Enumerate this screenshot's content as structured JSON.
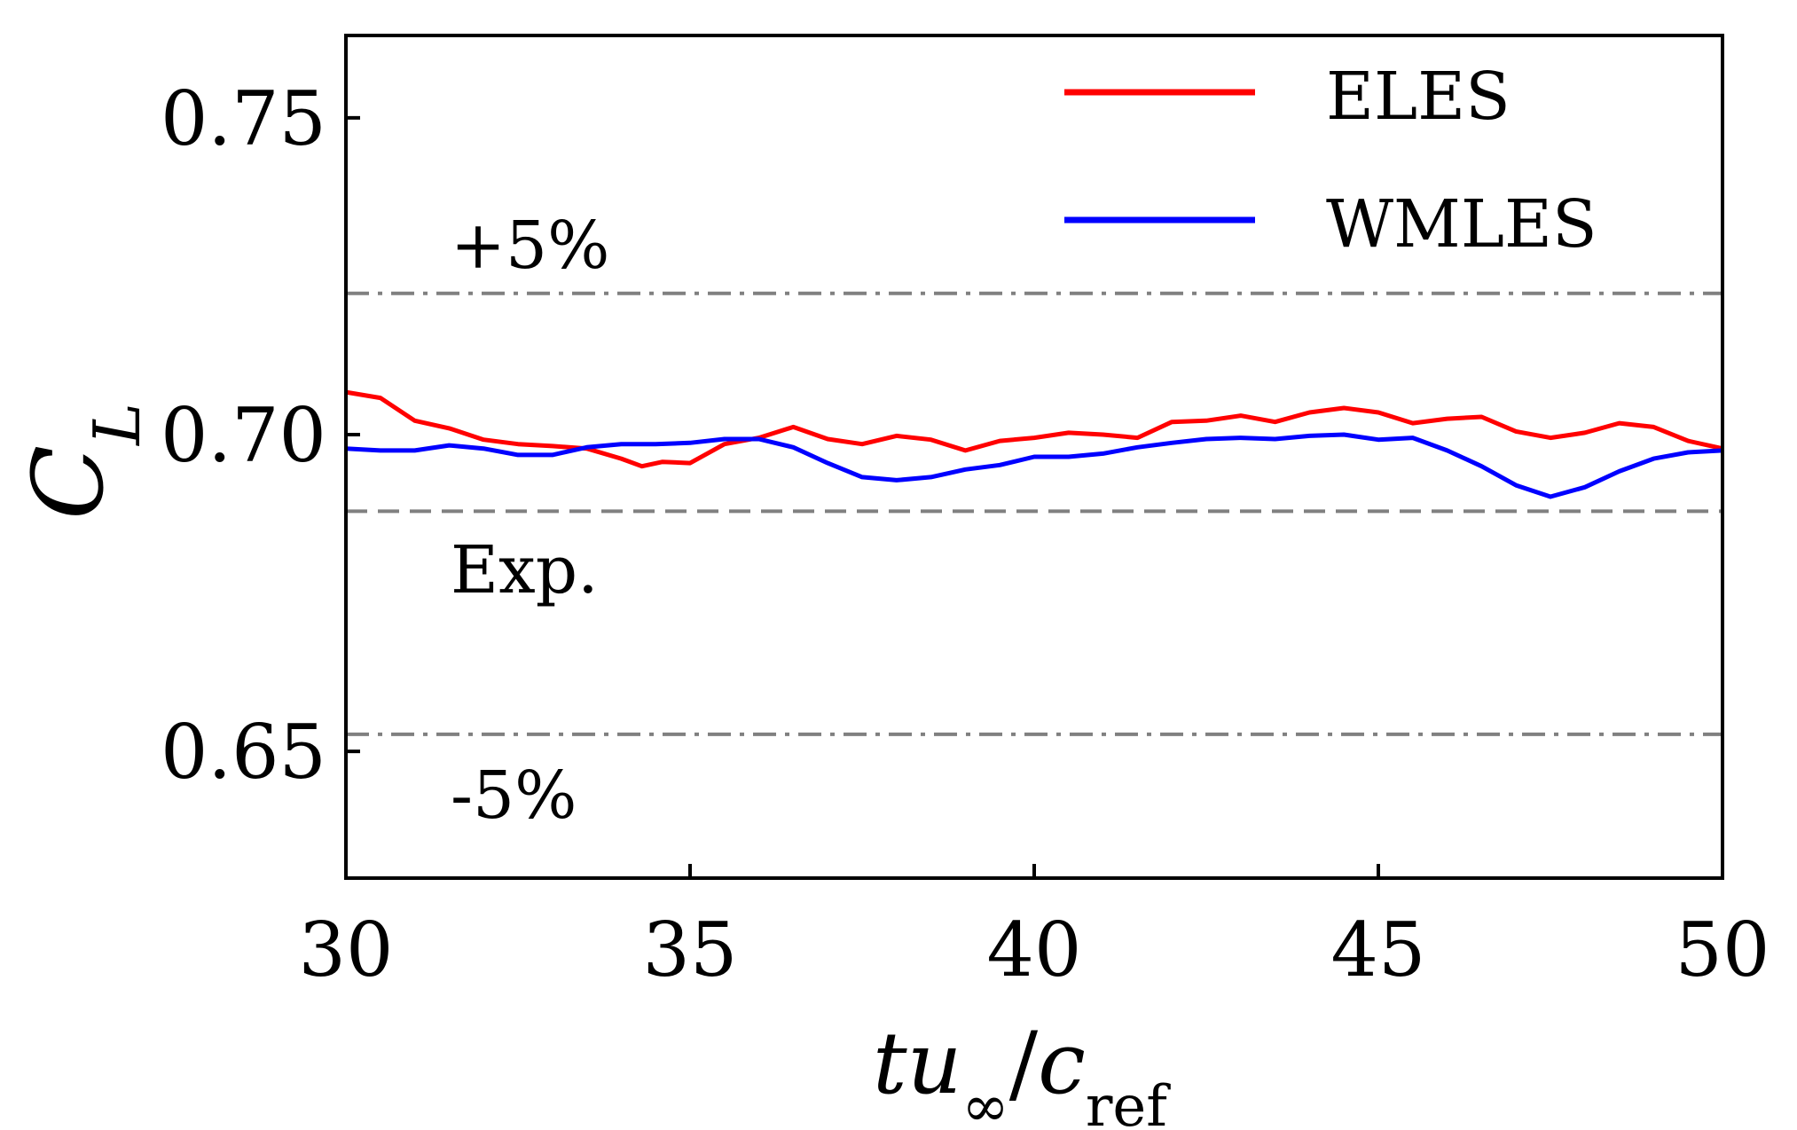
{
  "chart_data": {
    "type": "line",
    "xlabel": "tu∞/cref",
    "ylabel": "CL",
    "xlim": [
      30,
      50
    ],
    "ylim": [
      0.63,
      0.763
    ],
    "x_ticks": [
      "30",
      "35",
      "40",
      "45",
      "50"
    ],
    "y_ticks": [
      "0.65",
      "0.70",
      "0.75"
    ],
    "legend": {
      "position": "top-right",
      "entries": [
        "ELES",
        "WMLES"
      ]
    },
    "grid": false,
    "reference_lines": [
      {
        "label": "+5%",
        "value": 0.7223,
        "style": "dash-dot",
        "color": "#808080"
      },
      {
        "label": "Exp.",
        "value": 0.6879,
        "style": "dashed",
        "color": "#808080"
      },
      {
        "label": "-5%",
        "value": 0.6527,
        "style": "dash-dot",
        "color": "#808080"
      }
    ],
    "series": [
      {
        "name": "ELES",
        "color": "#ff0000",
        "x": [
          30.0,
          30.5,
          31.0,
          31.5,
          32.0,
          32.5,
          33.0,
          33.5,
          34.0,
          34.3,
          34.6,
          35.0,
          35.5,
          36.0,
          36.5,
          37.0,
          37.5,
          38.0,
          38.5,
          39.0,
          39.5,
          40.0,
          40.5,
          41.0,
          41.5,
          42.0,
          42.5,
          43.0,
          43.5,
          44.0,
          44.5,
          45.0,
          45.5,
          46.0,
          46.5,
          47.0,
          47.5,
          48.0,
          48.5,
          49.0,
          49.5,
          50.0
        ],
        "y": [
          0.7067,
          0.7058,
          0.7022,
          0.701,
          0.6992,
          0.6985,
          0.6982,
          0.6978,
          0.6962,
          0.695,
          0.6957,
          0.6955,
          0.6985,
          0.6995,
          0.7012,
          0.6993,
          0.6985,
          0.6998,
          0.6992,
          0.6975,
          0.699,
          0.6995,
          0.7003,
          0.7,
          0.6995,
          0.702,
          0.7022,
          0.703,
          0.702,
          0.7035,
          0.7042,
          0.7035,
          0.7018,
          0.7025,
          0.7028,
          0.7005,
          0.6995,
          0.7003,
          0.7018,
          0.7012,
          0.699,
          0.6978
        ]
      },
      {
        "name": "WMLES",
        "color": "#0000ff",
        "x": [
          30.0,
          30.5,
          31.0,
          31.5,
          32.0,
          32.5,
          33.0,
          33.5,
          34.0,
          34.5,
          35.0,
          35.5,
          36.0,
          36.5,
          37.0,
          37.5,
          38.0,
          38.5,
          39.0,
          39.5,
          40.0,
          40.5,
          41.0,
          41.5,
          42.0,
          42.5,
          43.0,
          43.5,
          44.0,
          44.5,
          45.0,
          45.5,
          46.0,
          46.5,
          47.0,
          47.5,
          48.0,
          48.5,
          49.0,
          49.5,
          50.0
        ],
        "y": [
          0.6978,
          0.6975,
          0.6975,
          0.6983,
          0.6978,
          0.6968,
          0.6968,
          0.698,
          0.6985,
          0.6985,
          0.6987,
          0.6993,
          0.6993,
          0.698,
          0.6955,
          0.6933,
          0.6928,
          0.6933,
          0.6945,
          0.6952,
          0.6965,
          0.6965,
          0.697,
          0.698,
          0.6987,
          0.6993,
          0.6995,
          0.6993,
          0.6998,
          0.7,
          0.6992,
          0.6995,
          0.6975,
          0.695,
          0.692,
          0.6902,
          0.6917,
          0.6942,
          0.6962,
          0.6972,
          0.6975
        ]
      }
    ]
  }
}
